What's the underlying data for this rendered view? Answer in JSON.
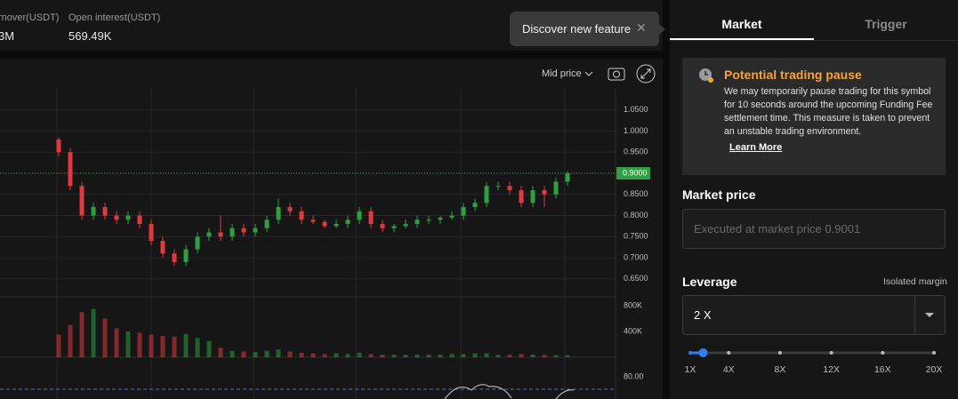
{
  "header": {
    "stats": [
      {
        "label": "rnover(USDT)",
        "value": "3M"
      },
      {
        "label": "Open interest(USDT)",
        "value": "569.49K"
      }
    ],
    "tooltip": "Discover new feature"
  },
  "price_chart": {
    "type": "candlestick",
    "price_source": "Mid price",
    "ylim": [
      0.6075,
      1.1
    ],
    "yticks": [
      {
        "value": 1.05,
        "label": "1.0500"
      },
      {
        "value": 1.0,
        "label": "1.0000"
      },
      {
        "value": 0.95,
        "label": "0.9500"
      },
      {
        "value": 0.9,
        "label": "0.9000"
      },
      {
        "value": 0.85,
        "label": "0.8500"
      },
      {
        "value": 0.8,
        "label": "0.8000"
      },
      {
        "value": 0.75,
        "label": "0.7500"
      },
      {
        "value": 0.7,
        "label": "0.7000"
      },
      {
        "value": 0.65,
        "label": "0.6500"
      }
    ],
    "last_price": {
      "value": 0.9,
      "label": "0.9000"
    },
    "up_color": "#2ea043",
    "down_color": "#e0393e",
    "candles": [
      [
        0.98,
        0.985,
        0.94,
        0.95
      ],
      [
        0.95,
        0.96,
        0.86,
        0.87
      ],
      [
        0.87,
        0.88,
        0.79,
        0.8
      ],
      [
        0.8,
        0.83,
        0.79,
        0.82
      ],
      [
        0.82,
        0.83,
        0.79,
        0.8
      ],
      [
        0.8,
        0.81,
        0.78,
        0.79
      ],
      [
        0.79,
        0.81,
        0.78,
        0.8
      ],
      [
        0.8,
        0.81,
        0.77,
        0.78
      ],
      [
        0.78,
        0.79,
        0.73,
        0.74
      ],
      [
        0.74,
        0.75,
        0.7,
        0.71
      ],
      [
        0.71,
        0.72,
        0.68,
        0.69
      ],
      [
        0.69,
        0.73,
        0.68,
        0.72
      ],
      [
        0.72,
        0.76,
        0.71,
        0.75
      ],
      [
        0.75,
        0.77,
        0.74,
        0.76
      ],
      [
        0.76,
        0.8,
        0.74,
        0.75
      ],
      [
        0.75,
        0.78,
        0.74,
        0.77
      ],
      [
        0.77,
        0.78,
        0.75,
        0.76
      ],
      [
        0.76,
        0.78,
        0.75,
        0.77
      ],
      [
        0.77,
        0.8,
        0.76,
        0.79
      ],
      [
        0.79,
        0.84,
        0.78,
        0.82
      ],
      [
        0.82,
        0.83,
        0.8,
        0.81
      ],
      [
        0.81,
        0.82,
        0.78,
        0.79
      ],
      [
        0.79,
        0.8,
        0.78,
        0.785
      ],
      [
        0.785,
        0.79,
        0.77,
        0.775
      ],
      [
        0.775,
        0.79,
        0.77,
        0.78
      ],
      [
        0.78,
        0.8,
        0.77,
        0.79
      ],
      [
        0.79,
        0.82,
        0.78,
        0.81
      ],
      [
        0.81,
        0.82,
        0.77,
        0.78
      ],
      [
        0.78,
        0.79,
        0.76,
        0.77
      ],
      [
        0.77,
        0.78,
        0.76,
        0.775
      ],
      [
        0.775,
        0.79,
        0.77,
        0.78
      ],
      [
        0.78,
        0.8,
        0.77,
        0.79
      ],
      [
        0.79,
        0.8,
        0.78,
        0.79
      ],
      [
        0.79,
        0.8,
        0.78,
        0.795
      ],
      [
        0.795,
        0.81,
        0.79,
        0.8
      ],
      [
        0.8,
        0.83,
        0.79,
        0.82
      ],
      [
        0.82,
        0.84,
        0.81,
        0.83
      ],
      [
        0.83,
        0.88,
        0.82,
        0.87
      ],
      [
        0.87,
        0.88,
        0.86,
        0.87
      ],
      [
        0.87,
        0.88,
        0.85,
        0.86
      ],
      [
        0.86,
        0.87,
        0.82,
        0.83
      ],
      [
        0.83,
        0.87,
        0.82,
        0.86
      ],
      [
        0.86,
        0.87,
        0.82,
        0.85
      ],
      [
        0.85,
        0.89,
        0.84,
        0.88
      ],
      [
        0.88,
        0.905,
        0.87,
        0.9
      ]
    ],
    "volume_ticks": [
      {
        "value": 800000,
        "label": "800K"
      },
      {
        "value": 400000,
        "label": "400K"
      }
    ],
    "volumes": [
      350000,
      500000,
      700000,
      750000,
      600000,
      450000,
      400000,
      380000,
      350000,
      330000,
      320000,
      360000,
      300000,
      250000,
      150000,
      100000,
      90000,
      80000,
      100000,
      120000,
      90000,
      70000,
      60000,
      50000,
      60000,
      50000,
      70000,
      50000,
      40000,
      40000,
      40000,
      40000,
      40000,
      40000,
      50000,
      50000,
      60000,
      60000,
      40000,
      40000,
      50000,
      40000,
      40000,
      30000,
      30000
    ],
    "indicator_ticks": [
      {
        "value": 80,
        "label": "80.00"
      }
    ]
  },
  "order_panel": {
    "tabs": [
      "Market",
      "Trigger"
    ],
    "notice": {
      "title": "Potential trading pause",
      "body": "We may temporarily pause trading for this symbol for 10 seconds around the upcoming Funding Fee settlement time. This measure is taken to prevent an unstable trading environment.",
      "link": "Learn More"
    },
    "market_price_label": "Market price",
    "market_price_placeholder": "Executed at market price 0.9001",
    "leverage_label": "Leverage",
    "margin_mode": "Isolated margin",
    "leverage": {
      "value": 2,
      "label": "2 X"
    },
    "leverage_range": [
      1,
      20
    ],
    "leverage_ticks": [
      {
        "value": 1,
        "label": "1X"
      },
      {
        "value": 4,
        "label": "4X"
      },
      {
        "value": 8,
        "label": "8X"
      },
      {
        "value": 12,
        "label": "12X"
      },
      {
        "value": 16,
        "label": "16X"
      },
      {
        "value": 20,
        "label": "20X"
      }
    ]
  }
}
